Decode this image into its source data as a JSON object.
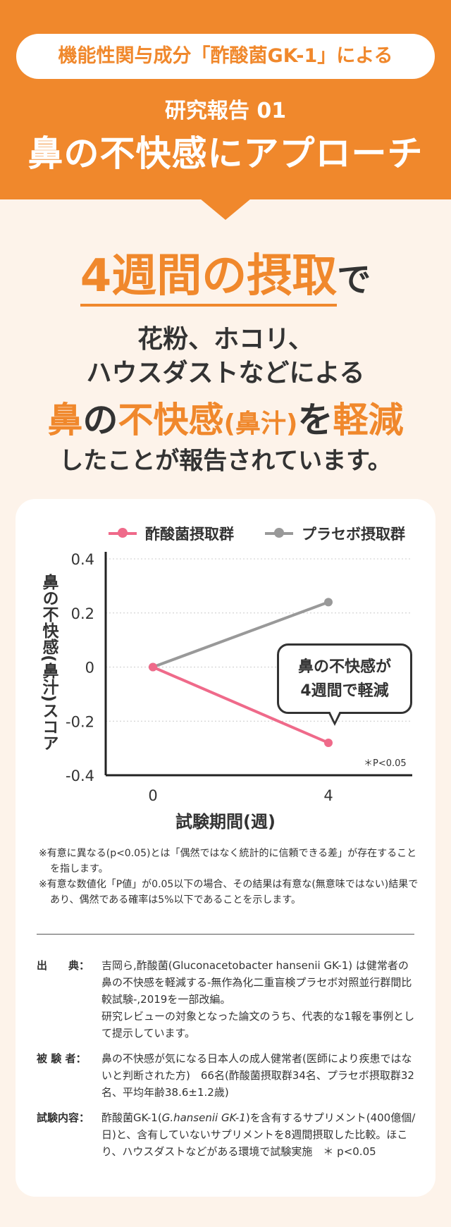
{
  "header": {
    "pill": "機能性関与成分「酢酸菌GK-1」による",
    "report_no": "研究報告 01",
    "title": "鼻の不快感にアプローチ"
  },
  "lead": {
    "highlight": "4週間の摂取",
    "suffix": "で"
  },
  "claim": {
    "line1": "花粉、ホコリ、",
    "line2": "ハウスダストなどによる",
    "line3_a": "鼻",
    "line3_b": "の",
    "line3_c": "不快感",
    "line3_d": "(鼻汁)",
    "line3_e": "を",
    "line3_f": "軽減",
    "line4": "したことが報告されています。"
  },
  "chart_data": {
    "type": "line",
    "x": [
      0,
      4
    ],
    "x_ticks": [
      "0",
      "4"
    ],
    "xlabel": "試験期間(週)",
    "ylabel": "鼻の不快感(鼻汁)スコア",
    "ylim": [
      -0.4,
      0.4
    ],
    "y_ticks": [
      "0.4",
      "0.2",
      "0",
      "-0.2",
      "-0.4"
    ],
    "grid": true,
    "legend_position": "top",
    "series": [
      {
        "name": "酢酸菌摂取群",
        "values": [
          0,
          -0.28
        ],
        "color": "#ef6a8a"
      },
      {
        "name": "プラセボ摂取群",
        "values": [
          0,
          0.24
        ],
        "color": "#999999"
      }
    ],
    "annotation": {
      "line1": "鼻の不快感が",
      "line2": "4週間で軽減"
    },
    "significance": "＊P<0.05"
  },
  "notes": [
    "※有意に異なる(p<0.05)とは「偶然ではなく統計的に信頼できる差」が存在することを指します。",
    "※有意な数値化「P値」が0.05以下の場合、その結果は有意な(無意味ではない)結果であり、偶然である確率は5%以下であることを示します。"
  ],
  "references": {
    "source_label": "出　　典：",
    "source_text": "吉岡ら,酢酸菌(Gluconacetobacter hansenii GK-1) は健常者の鼻の不快感を軽減する-無作為化二重盲検プラセボ対照並行群間比較試験-,2019を一部改編。",
    "source_note": "研究レビューの対象となった論文のうち、代表的な1報を事例として提示しています。",
    "subject_label": "被 験 者：",
    "subject_text": "鼻の不快感が気になる日本人の成人健常者(医師により疾患ではないと判断された方)　66名(酢酸菌摂取群34名、プラセボ摂取群32名、平均年齢38.6±1.2歳)",
    "content_label": "試験内容：",
    "content_text_a": "酢酸菌GK-1(",
    "content_text_italic": "G.hansenii GK-1",
    "content_text_b": ")を含有するサプリメント(400億個/日)と、含有していないサプリメントを8週間摂取した比較。ほこり、ハウスダストなどがある環境で試験実施　＊ p<0.05"
  }
}
